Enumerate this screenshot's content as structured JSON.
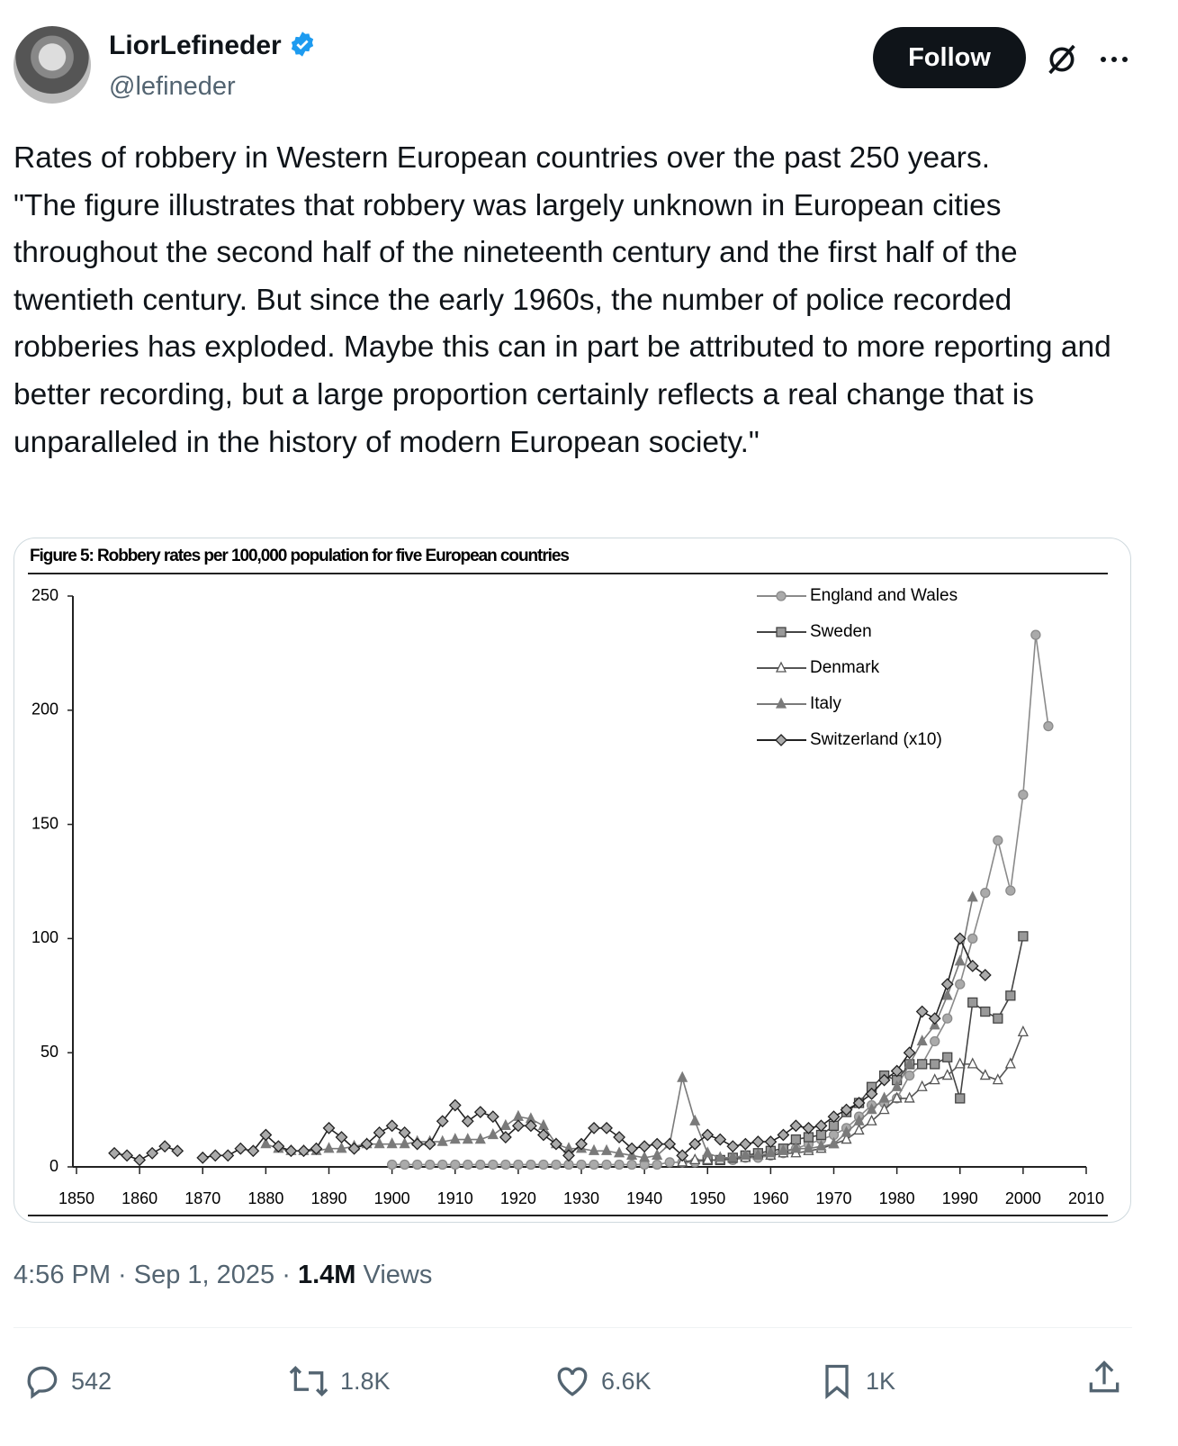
{
  "author": {
    "name": "LiorLefineder",
    "handle": "@lefineder"
  },
  "follow_button": "Follow",
  "post": {
    "text": "Rates of robbery in Western European countries over the past 250 years.\n\"The figure illustrates that robbery was largely unknown in European cities throughout the second half of the nineteenth century and the first half of the twentieth century. But since the early 1960s, the number of police recorded robberies has exploded. Maybe this can in part be attributed to more reporting and better recording, but a large proportion certainly reflects a real change that is unparalleled in the history of modern European society.\""
  },
  "meta": {
    "timestamp": "4:56 PM · Sep 1, 2025 ·",
    "views": "1.4M",
    "views_label": "Views"
  },
  "stats": {
    "replies": "542",
    "reposts": "1.8K",
    "likes": "6.6K",
    "bookmarks": "1K"
  },
  "chart_data": {
    "type": "line",
    "title": "Figure 5: Robbery rates per 100,000 population for five European countries",
    "x": [
      1856,
      1858,
      1860,
      1862,
      1864,
      1866,
      1868,
      1870,
      1872,
      1874,
      1876,
      1878,
      1880,
      1882,
      1884,
      1886,
      1888,
      1890,
      1892,
      1894,
      1896,
      1898,
      1900,
      1902,
      1904,
      1906,
      1908,
      1910,
      1912,
      1914,
      1916,
      1918,
      1920,
      1922,
      1924,
      1926,
      1928,
      1930,
      1932,
      1934,
      1936,
      1938,
      1940,
      1942,
      1944,
      1946,
      1948,
      1950,
      1952,
      1954,
      1956,
      1958,
      1960,
      1962,
      1964,
      1966,
      1968,
      1970,
      1972,
      1974,
      1976,
      1978,
      1980,
      1982,
      1984,
      1986,
      1988,
      1990,
      1992,
      1994,
      1996,
      1998,
      2000,
      2002,
      2004
    ],
    "xlim": [
      1850,
      2010
    ],
    "xticks": [
      1850,
      1860,
      1870,
      1880,
      1890,
      1900,
      1910,
      1920,
      1930,
      1940,
      1950,
      1960,
      1970,
      1980,
      1990,
      2000,
      2010
    ],
    "ylim": [
      0,
      250
    ],
    "yticks": [
      0,
      50,
      100,
      150,
      200,
      250
    ],
    "series": [
      {
        "name": "England and Wales",
        "color": "#8a8a8a",
        "marker": "circle",
        "values": [
          null,
          null,
          null,
          null,
          null,
          null,
          null,
          null,
          null,
          null,
          null,
          null,
          null,
          null,
          null,
          null,
          null,
          null,
          null,
          null,
          null,
          null,
          1,
          1,
          1,
          1,
          1,
          1,
          1,
          1,
          1,
          1,
          1,
          1,
          1,
          1,
          1,
          1,
          1,
          1,
          1,
          1,
          1,
          1,
          2,
          2,
          2,
          3,
          3,
          3,
          4,
          4,
          5,
          6,
          8,
          10,
          12,
          14,
          17,
          22,
          27,
          28,
          30,
          40,
          45,
          55,
          65,
          80,
          100,
          120,
          143,
          121,
          163,
          233,
          193
        ]
      },
      {
        "name": "Sweden",
        "color": "#444444",
        "marker": "square",
        "values": [
          null,
          null,
          null,
          null,
          null,
          null,
          null,
          null,
          null,
          null,
          null,
          null,
          null,
          null,
          null,
          null,
          null,
          null,
          null,
          null,
          null,
          null,
          null,
          null,
          null,
          null,
          null,
          null,
          null,
          null,
          null,
          null,
          null,
          null,
          null,
          null,
          null,
          null,
          null,
          null,
          null,
          null,
          null,
          null,
          null,
          null,
          null,
          3,
          3,
          4,
          5,
          6,
          7,
          8,
          12,
          13,
          14,
          18,
          24,
          28,
          35,
          40,
          38,
          45,
          45,
          45,
          48,
          30,
          72,
          68,
          65,
          75,
          101,
          null,
          null
        ]
      },
      {
        "name": "Denmark",
        "color": "#555555",
        "marker": "triangle-open",
        "values": [
          null,
          null,
          null,
          null,
          null,
          null,
          null,
          null,
          null,
          null,
          null,
          null,
          null,
          null,
          null,
          null,
          null,
          null,
          null,
          null,
          null,
          null,
          null,
          null,
          null,
          null,
          null,
          null,
          null,
          null,
          null,
          null,
          null,
          null,
          null,
          null,
          null,
          null,
          null,
          null,
          null,
          null,
          null,
          null,
          null,
          2,
          3,
          3,
          3,
          4,
          4,
          5,
          5,
          6,
          6,
          7,
          8,
          10,
          12,
          16,
          20,
          25,
          30,
          30,
          35,
          38,
          40,
          45,
          45,
          40,
          38,
          45,
          59,
          null,
          null
        ]
      },
      {
        "name": "Italy",
        "color": "#7a7a7a",
        "marker": "triangle",
        "values": [
          null,
          null,
          null,
          null,
          null,
          null,
          null,
          null,
          null,
          null,
          null,
          null,
          10,
          8,
          7,
          7,
          7,
          8,
          8,
          9,
          10,
          10,
          10,
          10,
          11,
          11,
          11,
          12,
          12,
          12,
          14,
          18,
          22,
          21,
          18,
          10,
          8,
          8,
          7,
          7,
          6,
          5,
          4,
          5,
          10,
          39,
          20,
          6,
          4,
          4,
          5,
          5,
          6,
          7,
          8,
          8,
          9,
          10,
          15,
          20,
          25,
          30,
          35,
          45,
          55,
          62,
          75,
          90,
          118,
          null,
          null,
          null,
          null,
          null,
          null
        ]
      },
      {
        "name": "Switzerland (x10)",
        "color": "#222222",
        "marker": "diamond",
        "values": [
          6,
          5,
          3,
          6,
          9,
          7,
          null,
          4,
          5,
          5,
          8,
          7,
          14,
          9,
          7,
          7,
          8,
          17,
          13,
          8,
          10,
          15,
          18,
          15,
          10,
          10,
          20,
          27,
          20,
          24,
          22,
          13,
          18,
          18,
          14,
          10,
          5,
          10,
          17,
          17,
          13,
          8,
          9,
          10,
          10,
          5,
          10,
          14,
          12,
          9,
          10,
          11,
          11,
          14,
          18,
          17,
          18,
          22,
          25,
          28,
          32,
          38,
          42,
          50,
          68,
          65,
          80,
          100,
          88,
          84,
          null,
          null,
          null,
          null,
          null
        ]
      }
    ]
  }
}
